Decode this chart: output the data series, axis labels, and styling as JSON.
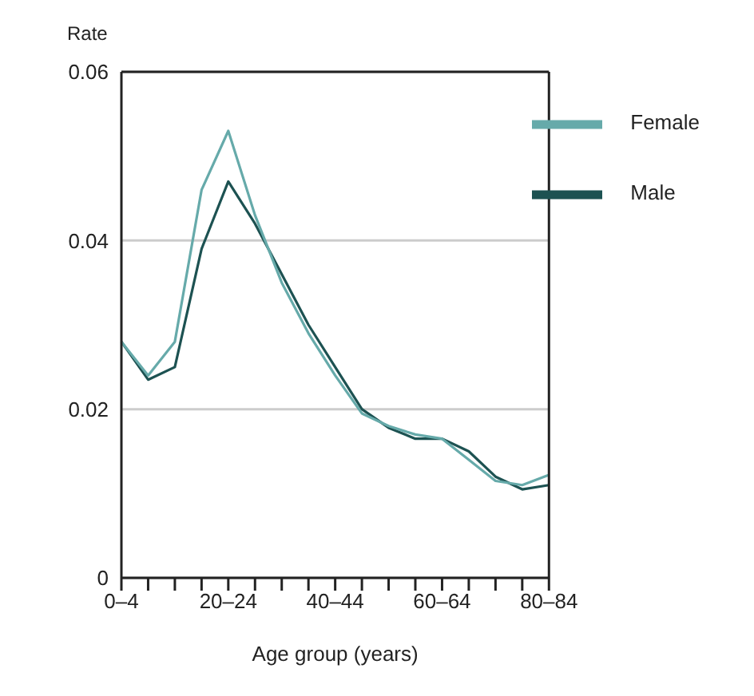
{
  "chart_data": {
    "type": "line",
    "ylabel": "Rate",
    "xlabel": "Age group (years)",
    "categories": [
      "0–4",
      null,
      null,
      null,
      "20–24",
      null,
      null,
      null,
      "40–44",
      null,
      null,
      null,
      "60–64",
      null,
      null,
      null,
      "80–84"
    ],
    "series": [
      {
        "name": "Male",
        "color": "#1d5252",
        "values": [
          0.028,
          0.0235,
          0.025,
          0.039,
          0.047,
          0.042,
          0.036,
          0.03,
          0.025,
          0.02,
          0.0178,
          0.0165,
          0.0165,
          0.015,
          0.012,
          0.0105,
          0.011
        ]
      },
      {
        "name": "Female",
        "color": "#66aaaa",
        "values": [
          0.028,
          0.024,
          0.028,
          0.046,
          0.053,
          0.043,
          0.035,
          0.029,
          0.024,
          0.0195,
          0.018,
          0.017,
          0.0165,
          0.014,
          0.0115,
          0.011,
          0.0122
        ]
      }
    ],
    "ylim": [
      0,
      0.06
    ],
    "yticks": [
      0,
      0.02,
      0.04,
      0.06
    ],
    "grid": "y",
    "legend": "top right",
    "marker": "none",
    "line_style": "solid"
  }
}
